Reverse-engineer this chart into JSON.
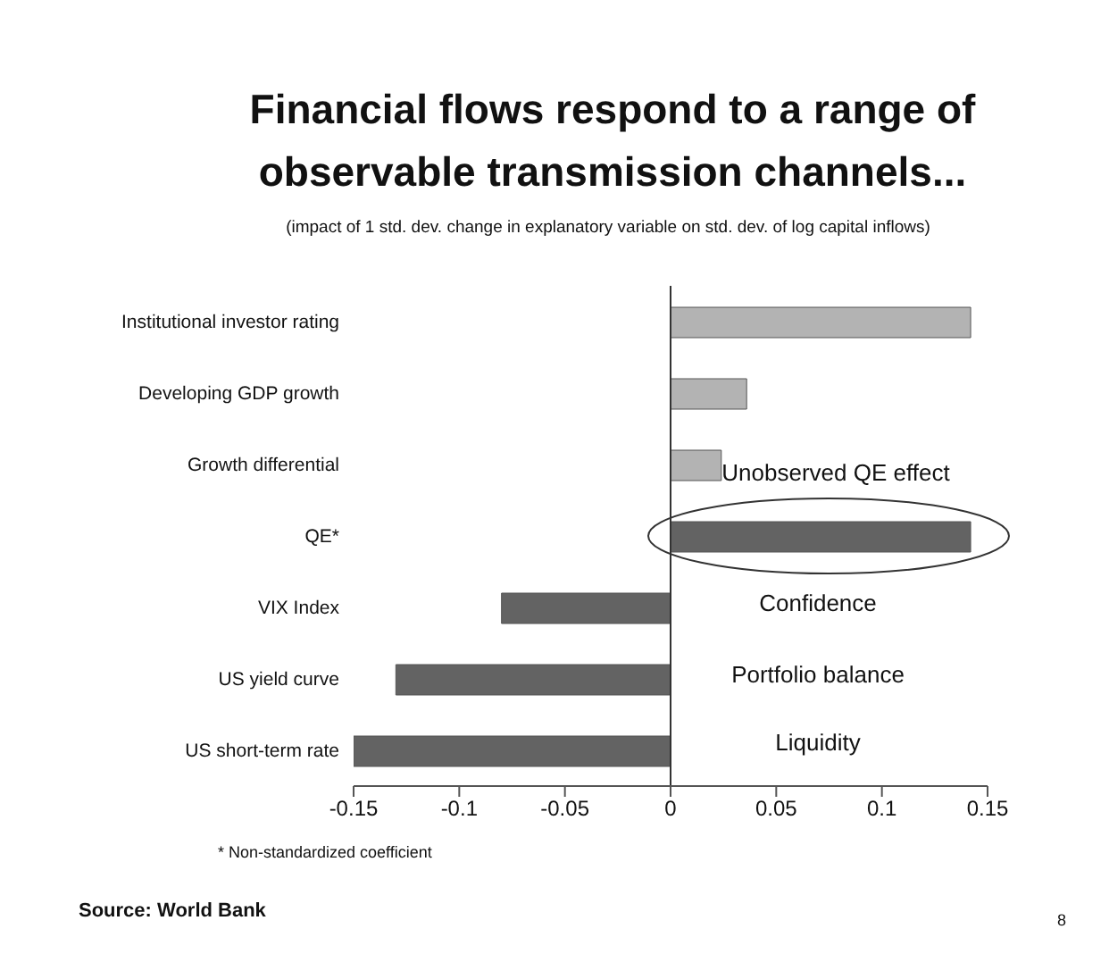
{
  "chart_data": {
    "type": "bar",
    "orientation": "horizontal",
    "title": "Financial flows respond to a range of observable transmission channels...",
    "subtitle": "(impact of 1 std. dev. change in explanatory variable on std. dev. of log capital inflows)",
    "categories": [
      "Institutional investor rating",
      "Developing GDP growth",
      "Growth differential",
      "QE*",
      "VIX Index",
      "US yield curve",
      "US short-term rate"
    ],
    "values": [
      0.142,
      0.036,
      0.024,
      0.142,
      -0.08,
      -0.13,
      -0.15
    ],
    "colors": [
      "#b3b3b3",
      "#b3b3b3",
      "#b3b3b3",
      "#636363",
      "#636363",
      "#636363",
      "#636363"
    ],
    "xlim": [
      -0.15,
      0.15
    ],
    "xticks": [
      -0.15,
      -0.1,
      -0.05,
      0,
      0.05,
      0.1,
      0.15
    ],
    "legend": false,
    "annotations": [
      "Unobserved QE effect",
      "Confidence",
      "Portfolio balance",
      "Liquidity",
      "* Non-standardized coefficient",
      "Source: World Bank",
      "8"
    ]
  }
}
